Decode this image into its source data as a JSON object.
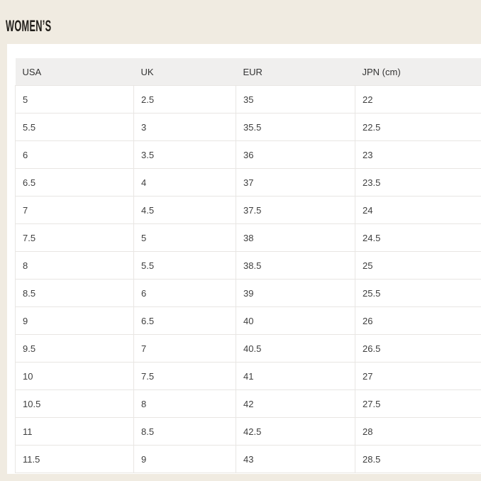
{
  "page": {
    "title": "WOMEN’S"
  },
  "table": {
    "columns": [
      "USA",
      "UK",
      "EUR",
      "JPN (cm)"
    ],
    "rows": [
      [
        "5",
        "2.5",
        "35",
        "22"
      ],
      [
        "5.5",
        "3",
        "35.5",
        "22.5"
      ],
      [
        "6",
        "3.5",
        "36",
        "23"
      ],
      [
        "6.5",
        "4",
        "37",
        "23.5"
      ],
      [
        "7",
        "4.5",
        "37.5",
        "24"
      ],
      [
        "7.5",
        "5",
        "38",
        "24.5"
      ],
      [
        "8",
        "5.5",
        "38.5",
        "25"
      ],
      [
        "8.5",
        "6",
        "39",
        "25.5"
      ],
      [
        "9",
        "6.5",
        "40",
        "26"
      ],
      [
        "9.5",
        "7",
        "40.5",
        "26.5"
      ],
      [
        "10",
        "7.5",
        "41",
        "27"
      ],
      [
        "10.5",
        "8",
        "42",
        "27.5"
      ],
      [
        "11",
        "8.5",
        "42.5",
        "28"
      ],
      [
        "11.5",
        "9",
        "43",
        "28.5"
      ]
    ]
  },
  "colors": {
    "page_background": "#f0ebe1",
    "card_background": "#ffffff",
    "header_row_background": "#f0efee",
    "cell_border": "#e8e6e3",
    "body_text": "#3e3e3e",
    "title_text": "#201d19"
  }
}
